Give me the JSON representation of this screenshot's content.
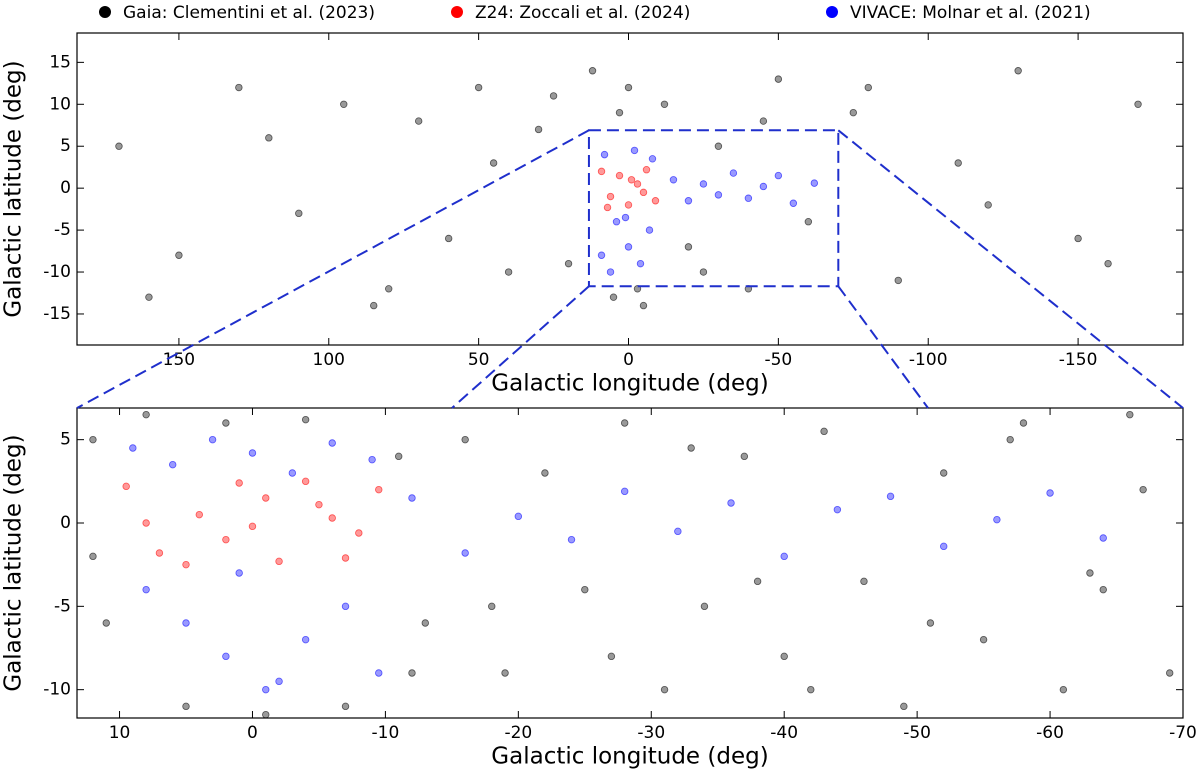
{
  "chart_data": [
    {
      "type": "scatter",
      "xlabel": "Galactic longitude (deg)",
      "ylabel": "Galactic latitude (deg)",
      "xlim": [
        184,
        -185
      ],
      "ylim": [
        -18.7,
        18.5
      ],
      "xticks": [
        150,
        100,
        50,
        0,
        -50,
        -100,
        -150
      ],
      "yticks": [
        -15,
        -10,
        -5,
        0,
        5,
        10,
        15
      ],
      "series": [
        {
          "name": "Gaia: Clementini et al. (2023)",
          "color": "#000000",
          "x": [
            170,
            150,
            130,
            110,
            95,
            80,
            70,
            60,
            50,
            40,
            30,
            20,
            12,
            5,
            0,
            -5,
            -12,
            -20,
            -30,
            -40,
            -50,
            -60,
            -75,
            -90,
            -110,
            -130,
            -150,
            -170,
            160,
            120,
            85,
            45,
            25,
            -25,
            -45,
            -80,
            -120,
            -160,
            3,
            -3
          ],
          "y": [
            5,
            -8,
            12,
            -3,
            10,
            -12,
            8,
            -6,
            12,
            -10,
            7,
            -9,
            14,
            -13,
            12,
            -14,
            10,
            -7,
            5,
            -12,
            13,
            -4,
            9,
            -11,
            3,
            14,
            -6,
            10,
            -13,
            6,
            -14,
            3,
            11,
            -10,
            8,
            12,
            -2,
            -9,
            9,
            -12
          ]
        },
        {
          "name": "Z24: Zoccali et al. (2024)",
          "color": "#ff0000",
          "x": [
            9,
            6,
            3,
            0,
            -3,
            -6,
            -9,
            7,
            -1,
            -5
          ],
          "y": [
            2,
            -1,
            1.5,
            -2,
            0.5,
            2.2,
            -1.5,
            -2.3,
            1,
            -0.5
          ]
        },
        {
          "name": "VIVACE: Molnar et al. (2021)",
          "color": "#0000ff",
          "x": [
            8,
            4,
            0,
            -4,
            -8,
            6,
            -2,
            -7,
            9,
            1,
            -15,
            -20,
            -25,
            -30,
            -35,
            -40,
            -45,
            -50,
            -55,
            -62
          ],
          "y": [
            4,
            -4,
            -7,
            -9,
            3.5,
            -10,
            4.5,
            -5,
            -8,
            -3.5,
            1,
            -1.5,
            0.5,
            -0.8,
            1.8,
            -1.2,
            0.2,
            1.5,
            -1.8,
            0.6
          ]
        }
      ]
    },
    {
      "type": "scatter",
      "xlabel": "Galactic longitude (deg)",
      "ylabel": "Galactic latitude (deg)",
      "xlim": [
        13.2,
        -70
      ],
      "ylim": [
        -11.7,
        6.9
      ],
      "xticks": [
        10,
        0,
        -10,
        -20,
        -30,
        -40,
        -50,
        -60,
        -70
      ],
      "yticks": [
        -10,
        -5,
        0,
        5
      ],
      "series": [
        {
          "color": "#000000",
          "x": [
            12,
            11,
            8,
            5,
            2,
            -1,
            -4,
            -7,
            -11,
            -13,
            -16,
            -19,
            -22,
            -25,
            -28,
            -31,
            -34,
            -37,
            -40,
            -43,
            -46,
            -49,
            -52,
            -55,
            -58,
            -61,
            -64,
            -67,
            -69,
            12,
            -12,
            -18,
            -27,
            -33,
            -42,
            -51,
            -57,
            -63,
            -66,
            -38
          ],
          "y": [
            5,
            -6,
            6.5,
            -11,
            6,
            -11.5,
            6.2,
            -11,
            4,
            -6,
            5,
            -9,
            3,
            -4,
            6,
            -10,
            -5,
            4,
            -8,
            5.5,
            -3.5,
            -11,
            3,
            -7,
            6,
            -10,
            -4,
            2,
            -9,
            -2,
            -9,
            -5,
            -8,
            4.5,
            -10,
            -6,
            5,
            -3,
            6.5,
            -3.5
          ]
        },
        {
          "color": "#ff0000",
          "x": [
            9.5,
            7,
            4,
            1,
            -2,
            -5,
            -8,
            -9.5,
            8,
            5,
            2,
            -1,
            -4,
            -7,
            0,
            -6
          ],
          "y": [
            2.2,
            -1.8,
            0.5,
            2.4,
            -2.3,
            1.1,
            -0.6,
            2,
            0,
            -2.5,
            -1,
            1.5,
            2.5,
            -2.1,
            -0.2,
            0.3
          ]
        },
        {
          "color": "#0000ff",
          "x": [
            9,
            6,
            3,
            0,
            -3,
            -6,
            -9,
            8,
            5,
            2,
            -1,
            -4,
            -7,
            -9.5,
            1,
            -2,
            -12,
            -16,
            -20,
            -24,
            -28,
            -32,
            -36,
            -40,
            -44,
            -48,
            -52,
            -56,
            -60,
            -64
          ],
          "y": [
            4.5,
            3.5,
            5,
            4.2,
            3,
            4.8,
            3.8,
            -4,
            -6,
            -8,
            -10,
            -7,
            -5,
            -9,
            -3,
            -9.5,
            1.5,
            -1.8,
            0.4,
            -1,
            1.9,
            -0.5,
            1.2,
            -2,
            0.8,
            1.6,
            -1.4,
            0.2,
            1.8,
            -0.9
          ]
        }
      ]
    }
  ]
}
